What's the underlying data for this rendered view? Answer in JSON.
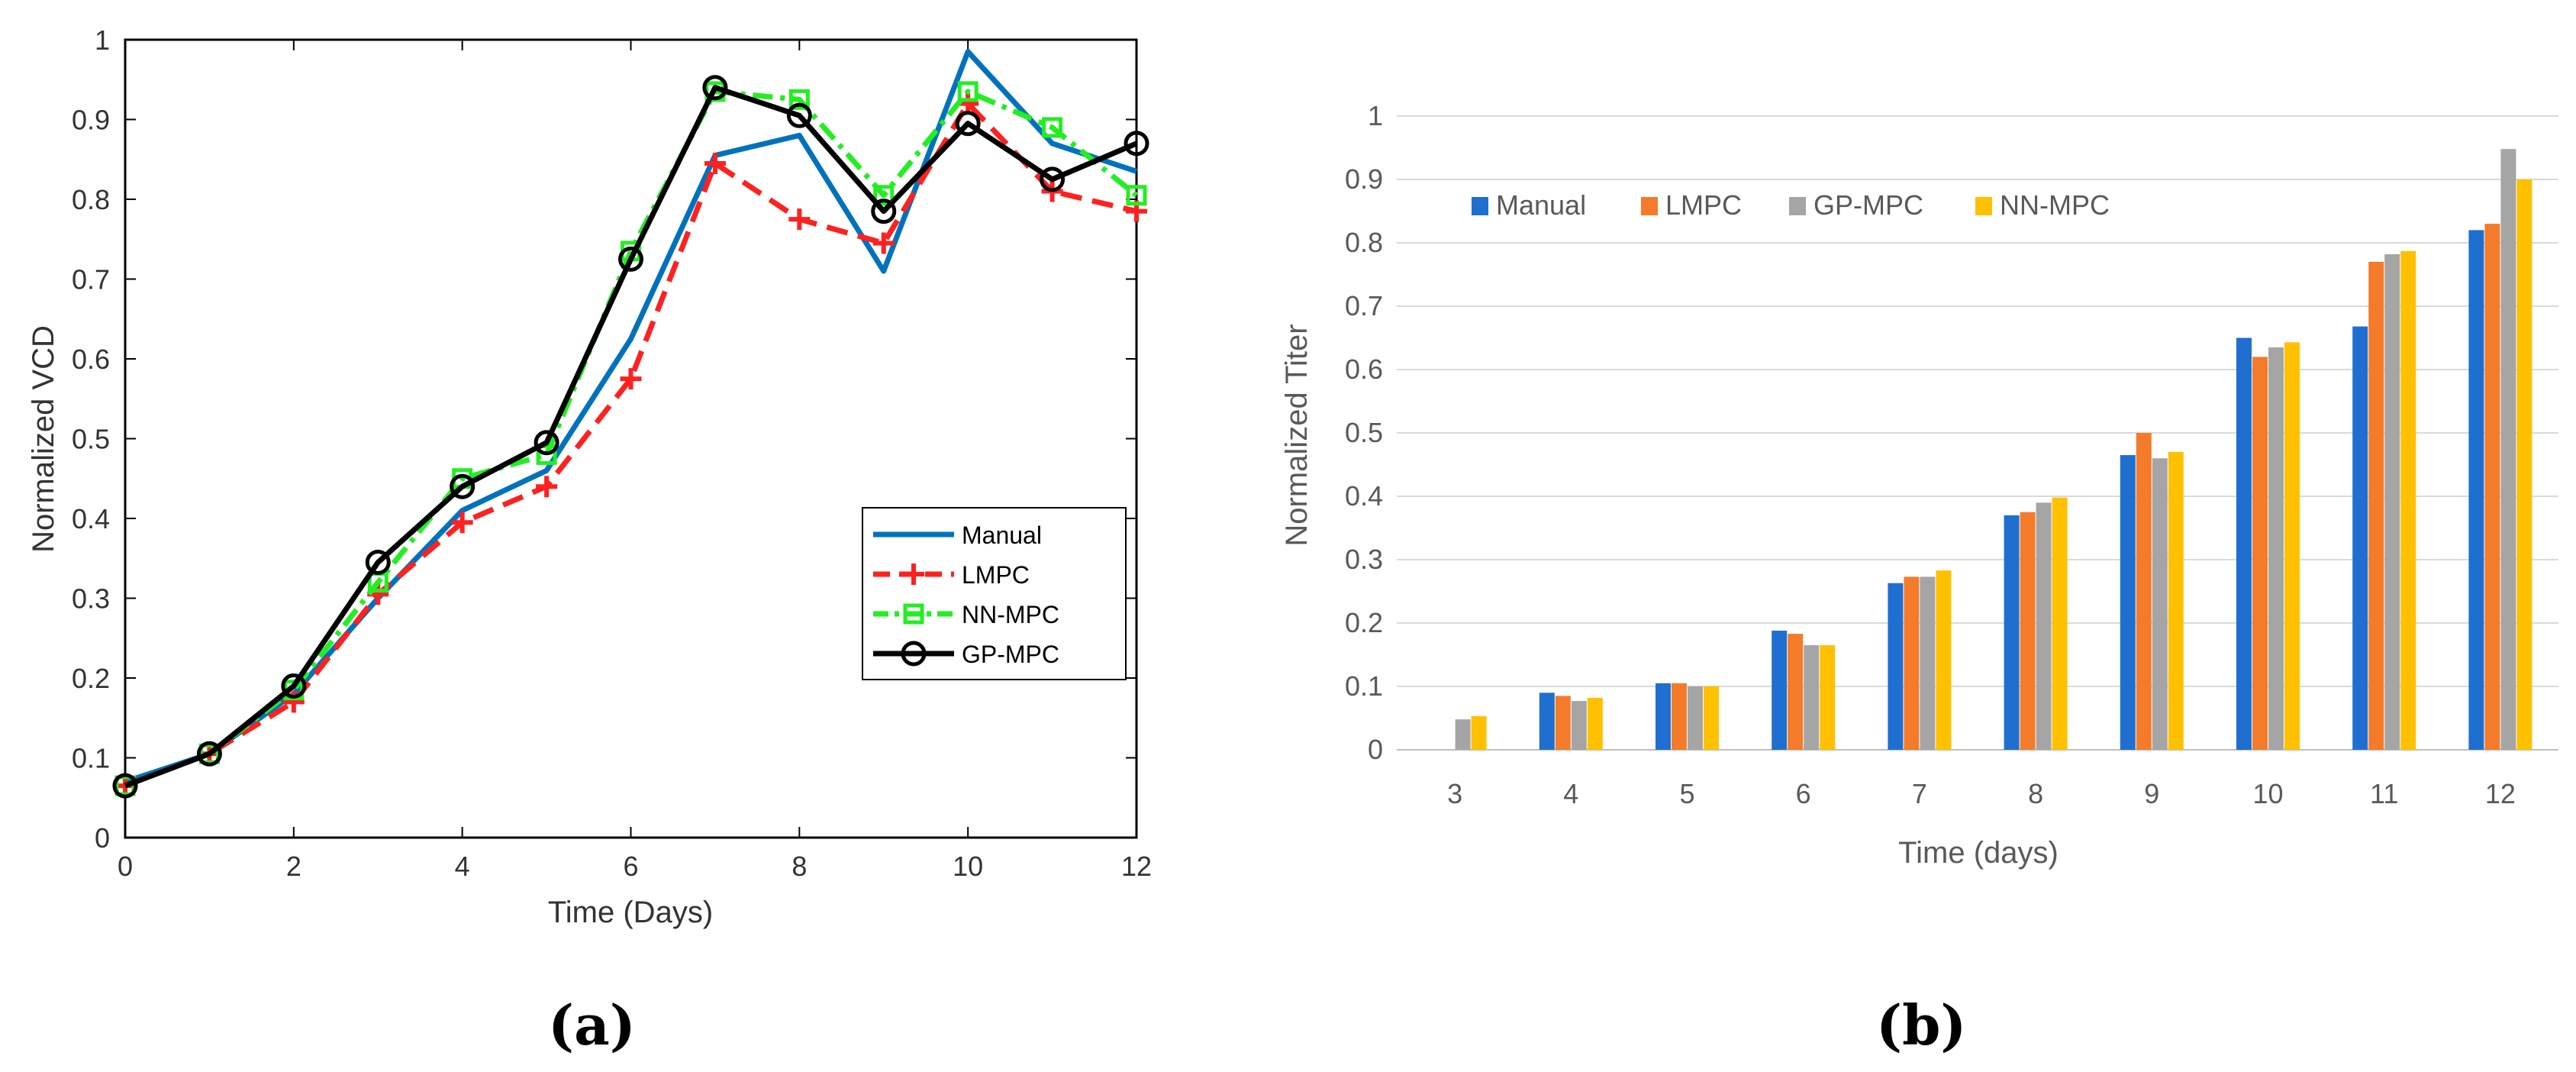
{
  "panels": {
    "a": "(a)",
    "b": "(b)"
  },
  "chart_data": [
    {
      "type": "line",
      "xlabel": "Time (Days)",
      "ylabel": "Normalized VCD",
      "xlim": [
        0,
        12
      ],
      "ylim": [
        0,
        1
      ],
      "x_ticks": [
        "0",
        "2",
        "4",
        "6",
        "8",
        "10",
        "12"
      ],
      "y_ticks": [
        "0",
        "0.1",
        "0.2",
        "0.3",
        "0.4",
        "0.5",
        "0.6",
        "0.7",
        "0.8",
        "0.9",
        "1"
      ],
      "legend_position": "lower-right",
      "x": [
        0,
        1,
        2,
        3,
        4,
        5,
        6,
        7,
        8,
        9,
        10,
        11,
        12
      ],
      "series": [
        {
          "name": "Manual",
          "color": "#0072BD",
          "style": "solid",
          "marker": "none",
          "values": [
            0.07,
            0.105,
            0.18,
            0.3,
            0.41,
            0.46,
            0.625,
            0.855,
            0.88,
            0.71,
            0.985,
            0.87,
            0.835
          ]
        },
        {
          "name": "LMPC",
          "color": "#FF2020",
          "style": "dashed",
          "marker": "plus",
          "values": [
            0.065,
            0.105,
            0.17,
            0.305,
            0.395,
            0.44,
            0.575,
            0.845,
            0.775,
            0.745,
            0.92,
            0.81,
            0.785
          ]
        },
        {
          "name": "NN-MPC",
          "color": "#22EE22",
          "style": "dashdot",
          "marker": "square",
          "values": [
            0.065,
            0.105,
            0.185,
            0.32,
            0.45,
            0.48,
            0.735,
            0.935,
            0.925,
            0.805,
            0.935,
            0.89,
            0.805
          ]
        },
        {
          "name": "GP-MPC",
          "color": "#000000",
          "style": "solid",
          "marker": "circle",
          "values": [
            0.065,
            0.105,
            0.19,
            0.345,
            0.44,
            0.495,
            0.725,
            0.94,
            0.905,
            0.785,
            0.895,
            0.825,
            0.87
          ]
        }
      ]
    },
    {
      "type": "bar",
      "xlabel": "Time (days)",
      "ylabel": "Normalized Titer",
      "ylim": [
        0,
        1
      ],
      "y_ticks": [
        "0",
        "0.1",
        "0.2",
        "0.3",
        "0.4",
        "0.5",
        "0.6",
        "0.7",
        "0.8",
        "0.9",
        "1"
      ],
      "grid": true,
      "legend_position": "top-left",
      "categories": [
        "3",
        "4",
        "5",
        "6",
        "7",
        "8",
        "9",
        "10",
        "11",
        "12"
      ],
      "series": [
        {
          "name": "Manual",
          "color": "#1F6FD0",
          "values": [
            0,
            0.09,
            0.105,
            0.188,
            0.263,
            0.37,
            0.465,
            0.65,
            0.668,
            0.82
          ]
        },
        {
          "name": "LMPC",
          "color": "#F47B2A",
          "values": [
            0,
            0.085,
            0.105,
            0.183,
            0.273,
            0.375,
            0.5,
            0.62,
            0.77,
            0.83
          ]
        },
        {
          "name": "GP-MPC",
          "color": "#A5A5A5",
          "values": [
            0.048,
            0.077,
            0.1,
            0.165,
            0.273,
            0.39,
            0.46,
            0.635,
            0.782,
            0.948
          ]
        },
        {
          "name": "NN-MPC",
          "color": "#FFC000",
          "values": [
            0.053,
            0.082,
            0.1,
            0.165,
            0.283,
            0.398,
            0.47,
            0.643,
            0.787,
            0.9
          ]
        }
      ]
    }
  ]
}
